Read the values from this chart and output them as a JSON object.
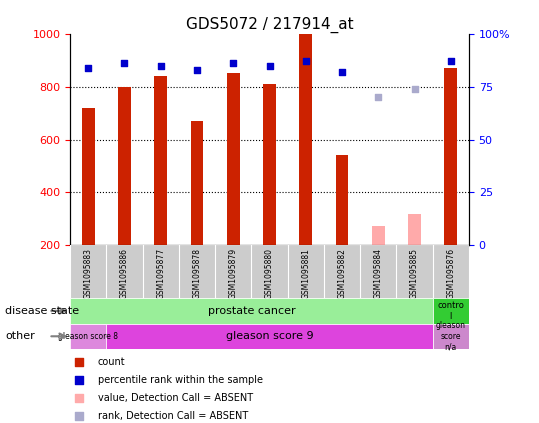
{
  "title": "GDS5072 / 217914_at",
  "samples": [
    "GSM1095883",
    "GSM1095886",
    "GSM1095877",
    "GSM1095878",
    "GSM1095879",
    "GSM1095880",
    "GSM1095881",
    "GSM1095882",
    "GSM1095884",
    "GSM1095885",
    "GSM1095876"
  ],
  "count_values": [
    720,
    800,
    840,
    670,
    850,
    810,
    1000,
    540,
    null,
    null,
    870
  ],
  "count_absent": [
    null,
    null,
    null,
    null,
    null,
    null,
    null,
    null,
    275,
    320,
    null
  ],
  "percentile_values": [
    84,
    86,
    85,
    83,
    86,
    85,
    87,
    82,
    null,
    null,
    87
  ],
  "percentile_absent": [
    null,
    null,
    null,
    null,
    null,
    null,
    null,
    null,
    70,
    74,
    null
  ],
  "ylim_left": [
    200,
    1000
  ],
  "ylim_right": [
    0,
    100
  ],
  "yticks_left": [
    200,
    400,
    600,
    800,
    1000
  ],
  "yticks_right": [
    0,
    25,
    50,
    75,
    100
  ],
  "ytick_labels_right": [
    "0",
    "25",
    "50",
    "75",
    "100%"
  ],
  "grid_lines": [
    400,
    600,
    800
  ],
  "bar_color_red": "#cc2200",
  "bar_color_pink": "#ffaaaa",
  "dot_color_blue": "#0000cc",
  "dot_color_lightblue": "#aaaacc",
  "disease_state_row": [
    "prostate cancer",
    "prostate cancer",
    "prostate cancer",
    "prostate cancer",
    "prostate cancer",
    "prostate cancer",
    "prostate cancer",
    "prostate cancer",
    "prostate cancer",
    "prostate cancer",
    "control"
  ],
  "other_row": [
    "gleason score 8",
    "gleason score 9",
    "gleason score 9",
    "gleason score 9",
    "gleason score 9",
    "gleason score 9",
    "gleason score 9",
    "gleason score 9",
    "gleason score 9",
    "gleason score 9",
    "gleason score n/a"
  ],
  "disease_bg_main": "#99ee99",
  "disease_bg_control": "#33cc33",
  "other_bg_1": "#dd88dd",
  "other_bg_main": "#dd44dd",
  "other_bg_na": "#cc88cc",
  "sample_bg": "#cccccc",
  "legend_items": [
    {
      "label": "count",
      "color": "#cc2200"
    },
    {
      "label": "percentile rank within the sample",
      "color": "#0000cc"
    },
    {
      "label": "value, Detection Call = ABSENT",
      "color": "#ffaaaa"
    },
    {
      "label": "rank, Detection Call = ABSENT",
      "color": "#aaaacc"
    }
  ]
}
